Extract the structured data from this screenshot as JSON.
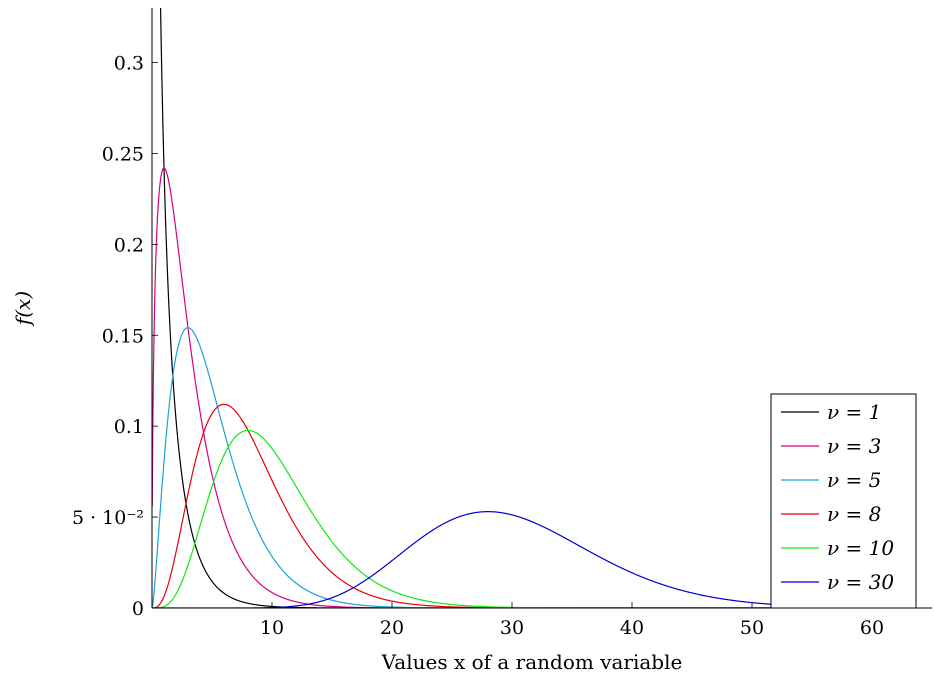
{
  "chart_data": {
    "type": "line",
    "title": "",
    "xlabel": "Values x of a random variable",
    "ylabel": "f(x)",
    "xlim": [
      0,
      65
    ],
    "ylim": [
      0,
      0.33
    ],
    "x_ticks": [
      10,
      20,
      30,
      40,
      50,
      60
    ],
    "y_ticks": [
      0,
      0.05,
      0.1,
      0.15,
      0.2,
      0.25,
      0.3
    ],
    "y_tick_labels": [
      "0",
      "5 · 10⁻²",
      "0.1",
      "0.15",
      "0.2",
      "0.25",
      "0.3"
    ],
    "x_tick_labels": [
      "10",
      "20",
      "30",
      "40",
      "50",
      "60"
    ],
    "grid": false,
    "legend_position": "bottom-right",
    "distribution": "chi-squared probability density",
    "series": [
      {
        "name": "ν = 1",
        "dof": 1,
        "color": "#000000",
        "peak": {
          "x": 0.1,
          "y": 0.33
        },
        "approx_values": [
          [
            1,
            0.242
          ],
          [
            2,
            0.104
          ],
          [
            3,
            0.051
          ],
          [
            5,
            0.015
          ],
          [
            10,
            0.001
          ]
        ]
      },
      {
        "name": "ν = 3",
        "dof": 3,
        "color": "#d6007f",
        "peak": {
          "x": 1,
          "y": 0.242
        },
        "approx_values": [
          [
            2,
            0.208
          ],
          [
            4,
            0.108
          ],
          [
            6,
            0.048
          ],
          [
            10,
            0.008
          ]
        ]
      },
      {
        "name": "ν = 5",
        "dof": 5,
        "color": "#1aa3d9",
        "peak": {
          "x": 3,
          "y": 0.154
        },
        "approx_values": [
          [
            1,
            0.081
          ],
          [
            5,
            0.122
          ],
          [
            8,
            0.055
          ],
          [
            12,
            0.013
          ]
        ]
      },
      {
        "name": "ν = 8",
        "dof": 8,
        "color": "#e8000b",
        "peak": {
          "x": 6,
          "y": 0.112
        },
        "approx_values": [
          [
            2,
            0.031
          ],
          [
            10,
            0.073
          ],
          [
            14,
            0.028
          ],
          [
            20,
            0.002
          ]
        ]
      },
      {
        "name": "ν = 10",
        "dof": 10,
        "color": "#12e812",
        "peak": {
          "x": 8,
          "y": 0.098
        },
        "approx_values": [
          [
            4,
            0.045
          ],
          [
            12,
            0.071
          ],
          [
            16,
            0.034
          ],
          [
            24,
            0.004
          ]
        ]
      },
      {
        "name": "ν = 30",
        "dof": 30,
        "color": "#0000cc",
        "peak": {
          "x": 28,
          "y": 0.053
        },
        "approx_values": [
          [
            15,
            0.004
          ],
          [
            20,
            0.019
          ],
          [
            35,
            0.034
          ],
          [
            45,
            0.008
          ],
          [
            60,
            0.0001
          ]
        ]
      }
    ]
  }
}
